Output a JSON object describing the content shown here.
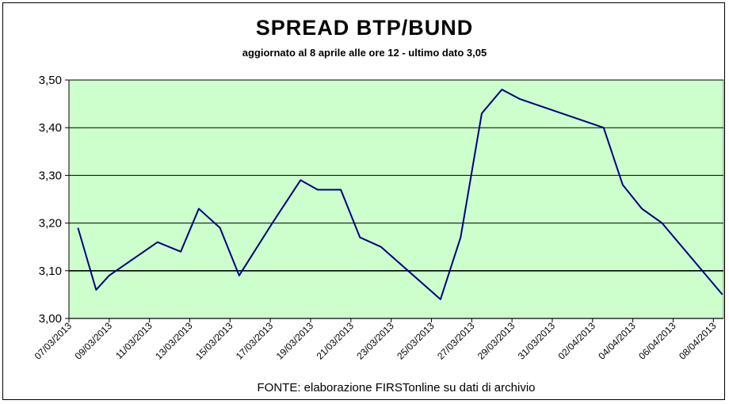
{
  "chart_data": {
    "type": "line",
    "title": "SPREAD  BTP/BUND",
    "subtitle": "aggiornato al 8 aprile alle ore 12 - ultimo dato 3,05",
    "source_note": "FONTE: elaborazione FIRSTonline su dati di archivio",
    "xlabel": "",
    "ylabel": "",
    "ylim": [
      3.0,
      3.5
    ],
    "y_ticks": [
      "3,00",
      "3,10",
      "3,20",
      "3,30",
      "3,40",
      "3,50"
    ],
    "y_tick_values": [
      3.0,
      3.1,
      3.2,
      3.3,
      3.4,
      3.5
    ],
    "x_tick_labels": [
      "07/03/2013",
      "09/03/2013",
      "11/03/2013",
      "13/03/2013",
      "15/03/2013",
      "17/03/2013",
      "19/03/2013",
      "21/03/2013",
      "23/03/2013",
      "25/03/2013",
      "27/03/2013",
      "29/03/2013",
      "31/03/2013",
      "02/04/2013",
      "04/04/2013",
      "06/04/2013",
      "08/04/2013"
    ],
    "x_range_days": [
      0,
      32.5
    ],
    "grid": "horizontal",
    "plot_background": "#ccffcc",
    "line_color": "#000080",
    "series": [
      {
        "points": [
          {
            "x": 0.45,
            "y": 3.19
          },
          {
            "x": 1.35,
            "y": 3.06
          },
          {
            "x": 2.0,
            "y": 3.09
          },
          {
            "x": 4.4,
            "y": 3.16
          },
          {
            "x": 5.55,
            "y": 3.14
          },
          {
            "x": 6.45,
            "y": 3.23
          },
          {
            "x": 7.5,
            "y": 3.19
          },
          {
            "x": 8.45,
            "y": 3.09
          },
          {
            "x": 10.1,
            "y": 3.2
          },
          {
            "x": 11.5,
            "y": 3.29
          },
          {
            "x": 12.35,
            "y": 3.27
          },
          {
            "x": 13.5,
            "y": 3.27
          },
          {
            "x": 14.45,
            "y": 3.17
          },
          {
            "x": 15.5,
            "y": 3.15
          },
          {
            "x": 18.45,
            "y": 3.04
          },
          {
            "x": 19.45,
            "y": 3.17
          },
          {
            "x": 20.5,
            "y": 3.43
          },
          {
            "x": 21.5,
            "y": 3.48
          },
          {
            "x": 22.4,
            "y": 3.46
          },
          {
            "x": 26.55,
            "y": 3.4
          },
          {
            "x": 27.5,
            "y": 3.28
          },
          {
            "x": 28.45,
            "y": 3.23
          },
          {
            "x": 29.45,
            "y": 3.2
          },
          {
            "x": 32.45,
            "y": 3.05
          }
        ]
      }
    ]
  }
}
